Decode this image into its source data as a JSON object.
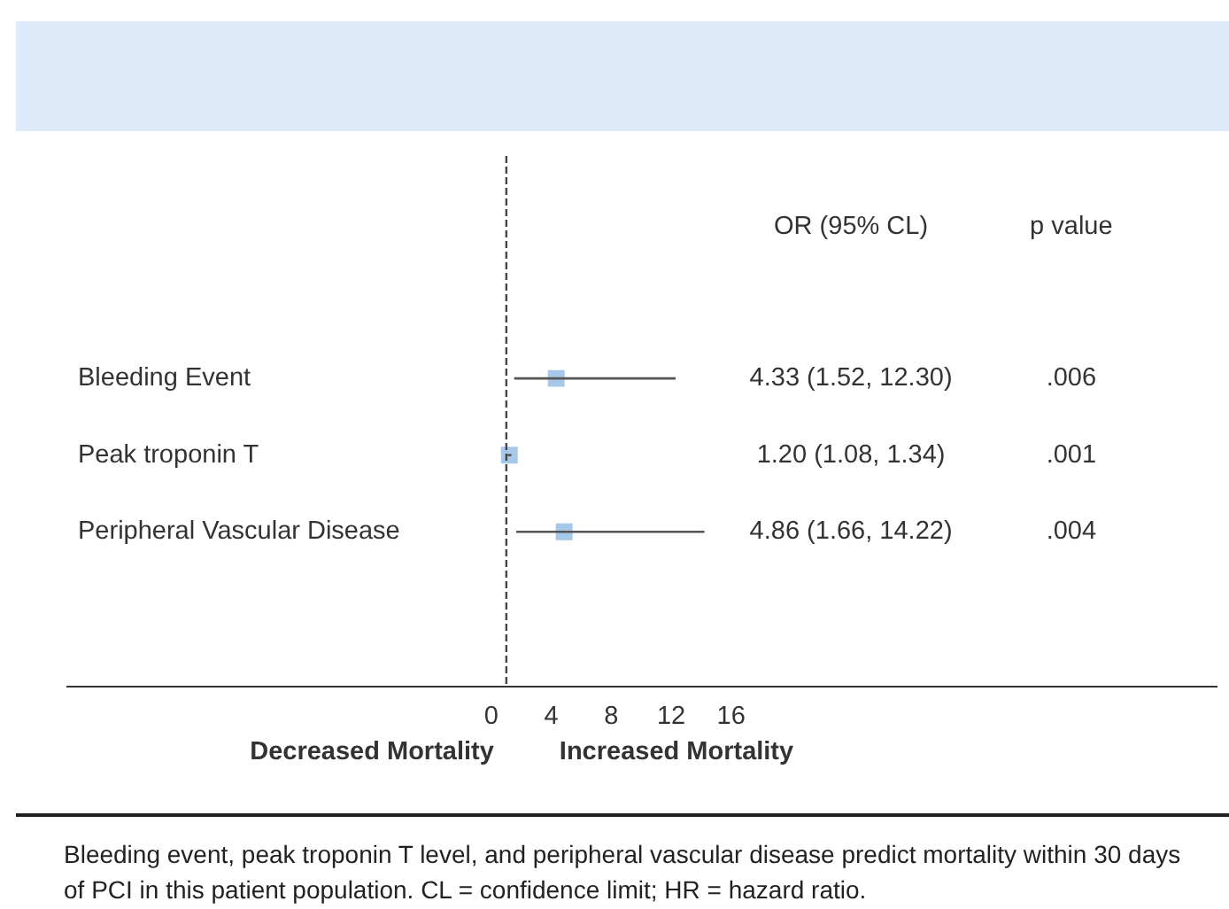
{
  "chart_data": {
    "type": "scatter",
    "orientation": "horizontal",
    "marker": "square",
    "categories": [
      "Bleeding Event",
      "Peak troponin T",
      "Peripheral Vascular Disease"
    ],
    "values": [
      4.33,
      1.2,
      4.86
    ],
    "errors": [
      [
        1.52,
        12.3
      ],
      [
        1.08,
        1.34
      ],
      [
        1.66,
        14.22
      ]
    ],
    "color": "#a7c8e8",
    "xlim": [
      -28.3,
      48.4
    ],
    "xticks": [
      0,
      4,
      8,
      12,
      16
    ],
    "ref_lines": [
      {
        "axis": "x",
        "value": 1,
        "line_style": "dashed",
        "color": "#444444"
      }
    ],
    "annotations": [
      "OR (95% CL)",
      "p value",
      "Decreased Mortality",
      "Increased Mortality",
      "Bleeding event, peak troponin T level, and peripheral vascular disease predict mortality within 30 days of PCI in this patient population. CL = confidence limit; HR = hazard ratio.",
      "4.33 (1.52, 12.30)",
      "1.20 (1.08, 1.34)",
      "4.86 (1.66, 14.22)",
      ".006",
      ".001",
      ".004"
    ]
  }
}
